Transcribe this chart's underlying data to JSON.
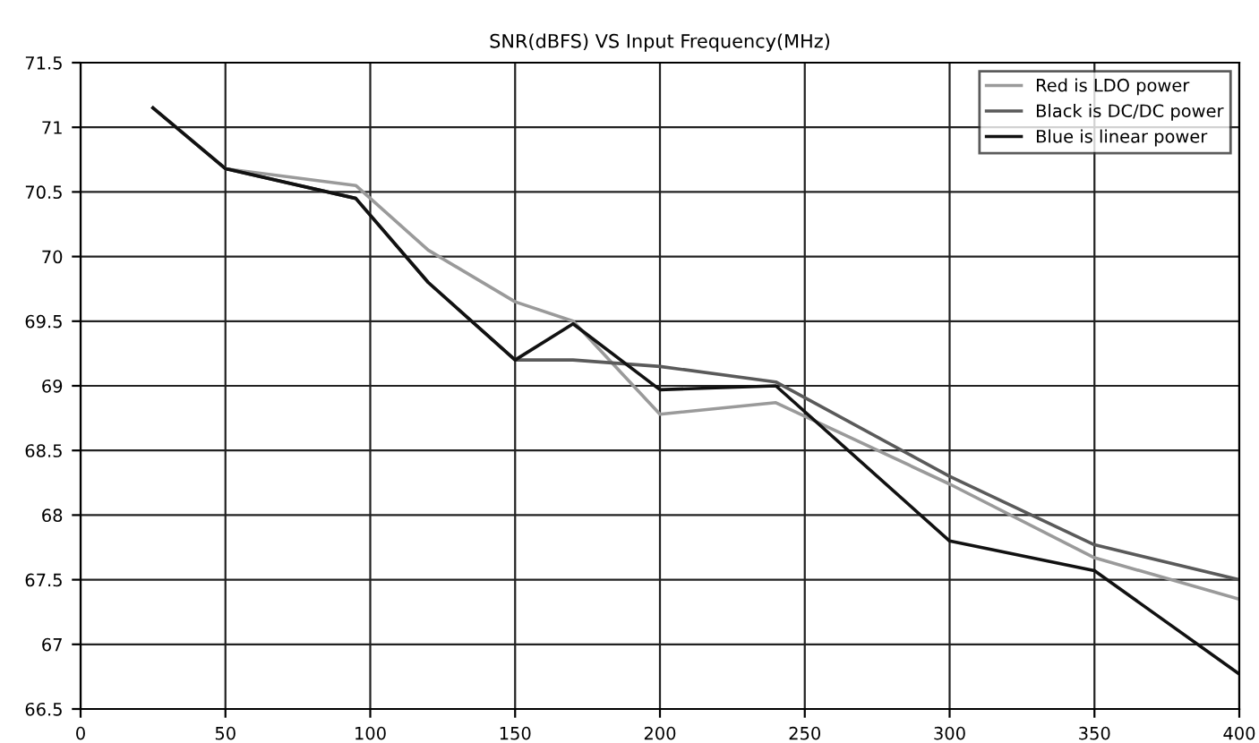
{
  "chart_data": {
    "type": "line",
    "title": "SNR(dBFS) VS Input Frequency(MHz)",
    "x": [
      25,
      50,
      95,
      120,
      150,
      170,
      200,
      240,
      300,
      350,
      400
    ],
    "series": [
      {
        "name": "Red is LDO power",
        "color": "#9a9a9a",
        "values": [
          71.15,
          70.68,
          70.55,
          70.05,
          69.65,
          69.5,
          68.78,
          68.87,
          68.24,
          67.67,
          67.35
        ]
      },
      {
        "name": "Black is DC/DC power",
        "color": "#5a5a5a",
        "values": [
          71.15,
          70.68,
          70.45,
          69.8,
          69.2,
          69.2,
          69.15,
          69.03,
          68.3,
          67.77,
          67.5
        ]
      },
      {
        "name": "Blue is linear power",
        "color": "#111111",
        "values": [
          71.15,
          70.68,
          70.45,
          69.8,
          69.2,
          69.48,
          68.97,
          69.0,
          67.8,
          67.57,
          66.77
        ]
      }
    ],
    "xlim": [
      0,
      400
    ],
    "xticks": [
      0,
      50,
      100,
      150,
      200,
      250,
      300,
      350,
      400
    ],
    "ylim": [
      66.5,
      71.5
    ],
    "yticks": [
      66.5,
      67,
      67.5,
      68,
      68.5,
      69,
      69.5,
      70,
      70.5,
      71,
      71.5
    ],
    "grid": true,
    "legend": "top right"
  }
}
